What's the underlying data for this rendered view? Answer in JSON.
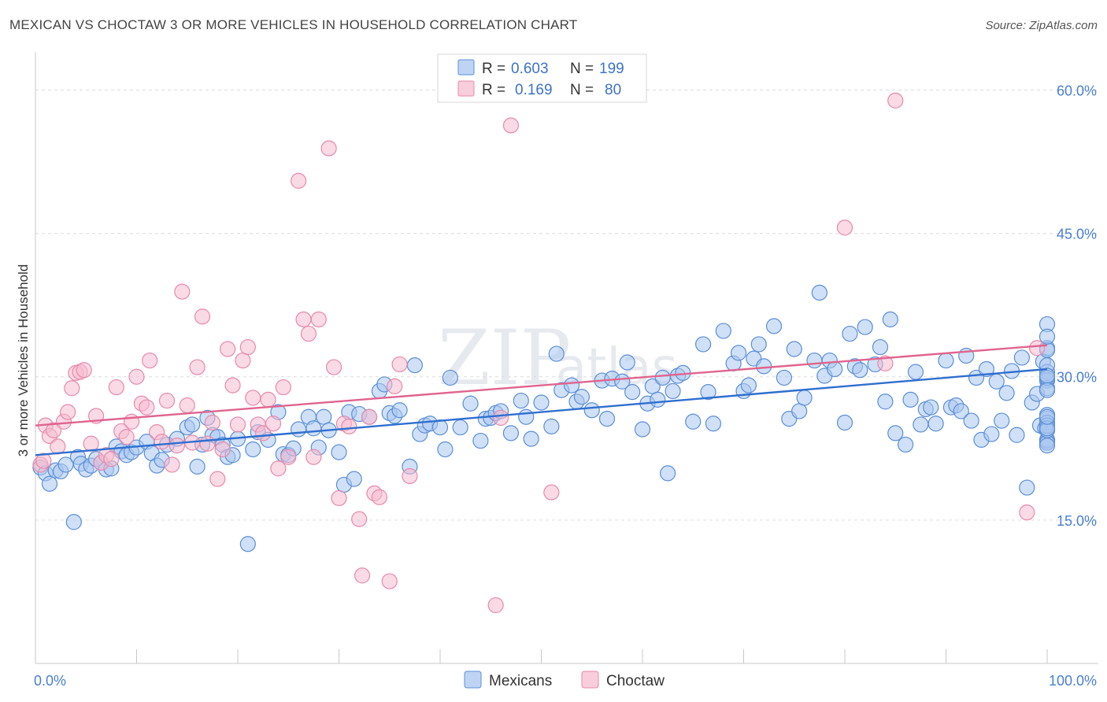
{
  "header": {
    "title": "MEXICAN VS CHOCTAW 3 OR MORE VEHICLES IN HOUSEHOLD CORRELATION CHART",
    "source": "Source: ZipAtlas.com"
  },
  "watermark": {
    "zip": "ZIP",
    "atlas": "atlas"
  },
  "colors": {
    "mexicans_fill": "#a9c6f0",
    "mexicans_stroke": "#5b8fd8",
    "mexicans_line": "#2f6fcf",
    "choctaw_fill": "#f5bcd0",
    "choctaw_stroke": "#e88aa8",
    "choctaw_line": "#e0648f",
    "tick_label": "#4a7fd0"
  },
  "stats_box": {
    "rows": [
      {
        "r_label": "R =",
        "r_value": "0.603",
        "n_label": "N =",
        "n_value": "199"
      },
      {
        "r_label": "R =",
        "r_value": "0.169",
        "n_label": "N =",
        "n_value": "80"
      }
    ]
  },
  "chart_data": {
    "type": "scatter",
    "title": "MEXICAN VS CHOCTAW 3 OR MORE VEHICLES IN HOUSEHOLD CORRELATION CHART",
    "xlabel": "",
    "ylabel": "3 or more Vehicles in Household",
    "xlim": [
      0,
      100
    ],
    "ylim": [
      0,
      63
    ],
    "x_tick_labels": [
      "0.0%",
      "100.0%"
    ],
    "y_ticks": [
      15,
      30,
      45,
      60
    ],
    "y_tick_labels": [
      "15.0%",
      "30.0%",
      "45.0%",
      "60.0%"
    ],
    "grid": true,
    "legend_position": "bottom-center",
    "series": [
      {
        "name": "Mexicans",
        "R": 0.603,
        "N": 199,
        "trend": {
          "x": [
            0,
            100
          ],
          "y": [
            21.8,
            30.8
          ]
        },
        "points": [
          [
            0.5,
            20.5
          ],
          [
            1,
            19.9
          ],
          [
            1.4,
            18.8
          ],
          [
            2,
            20.2
          ],
          [
            2.5,
            20.1
          ],
          [
            3,
            20.8
          ],
          [
            3.8,
            14.8
          ],
          [
            4.2,
            21.6
          ],
          [
            4.5,
            20.9
          ],
          [
            5,
            20.3
          ],
          [
            5.5,
            20.7
          ],
          [
            6,
            21.4
          ],
          [
            6.5,
            21
          ],
          [
            7,
            20.3
          ],
          [
            7.5,
            20.4
          ],
          [
            8,
            22.7
          ],
          [
            8.5,
            22.2
          ],
          [
            9,
            21.8
          ],
          [
            9.5,
            22.1
          ],
          [
            10,
            22.6
          ],
          [
            11,
            23.2
          ],
          [
            11.5,
            22
          ],
          [
            12,
            20.7
          ],
          [
            12.5,
            21.3
          ],
          [
            13,
            22.9
          ],
          [
            14,
            23.5
          ],
          [
            15,
            24.7
          ],
          [
            15.5,
            25
          ],
          [
            16,
            20.6
          ],
          [
            16.5,
            22.9
          ],
          [
            17,
            25.7
          ],
          [
            17.5,
            23.9
          ],
          [
            18,
            23.7
          ],
          [
            18.5,
            22.9
          ],
          [
            19,
            21.6
          ],
          [
            19.5,
            21.8
          ],
          [
            20,
            23.5
          ],
          [
            21,
            12.5
          ],
          [
            21.5,
            22.4
          ],
          [
            22,
            24.2
          ],
          [
            23,
            23.4
          ],
          [
            24,
            26.3
          ],
          [
            24.5,
            21.9
          ],
          [
            25,
            21.8
          ],
          [
            25.5,
            22.5
          ],
          [
            26,
            24.5
          ],
          [
            27,
            25.8
          ],
          [
            27.5,
            24.6
          ],
          [
            28,
            22.6
          ],
          [
            28.5,
            25.8
          ],
          [
            29,
            24.4
          ],
          [
            30,
            22.1
          ],
          [
            30.5,
            18.7
          ],
          [
            31,
            26.3
          ],
          [
            31.5,
            19.3
          ],
          [
            32,
            26.1
          ],
          [
            33,
            25.8
          ],
          [
            34,
            28.5
          ],
          [
            34.5,
            29.2
          ],
          [
            35,
            26.2
          ],
          [
            35.5,
            25.9
          ],
          [
            36,
            26.5
          ],
          [
            37,
            20.6
          ],
          [
            37.5,
            31.2
          ],
          [
            38,
            24
          ],
          [
            38.5,
            24.9
          ],
          [
            39,
            25.1
          ],
          [
            40,
            24.7
          ],
          [
            40.5,
            22.4
          ],
          [
            41,
            29.9
          ],
          [
            42,
            24.7
          ],
          [
            43,
            27.2
          ],
          [
            44,
            23.3
          ],
          [
            44.5,
            25.6
          ],
          [
            45,
            25.7
          ],
          [
            45.5,
            26.2
          ],
          [
            46,
            26.4
          ],
          [
            47,
            24.1
          ],
          [
            48,
            27.5
          ],
          [
            48.5,
            25.8
          ],
          [
            49,
            23.5
          ],
          [
            50,
            27.3
          ],
          [
            51,
            24.8
          ],
          [
            51.5,
            32.4
          ],
          [
            52,
            28.6
          ],
          [
            53,
            29.1
          ],
          [
            53.5,
            27.4
          ],
          [
            54,
            27.9
          ],
          [
            55,
            26.5
          ],
          [
            56,
            29.6
          ],
          [
            56.5,
            25.6
          ],
          [
            57,
            29.8
          ],
          [
            58,
            29.5
          ],
          [
            58.5,
            31.5
          ],
          [
            59,
            28.4
          ],
          [
            60,
            24.5
          ],
          [
            60.5,
            27.2
          ],
          [
            61,
            29
          ],
          [
            61.5,
            27.6
          ],
          [
            62,
            29.9
          ],
          [
            62.5,
            19.9
          ],
          [
            63,
            28.5
          ],
          [
            63.5,
            30.1
          ],
          [
            64,
            30.4
          ],
          [
            65,
            25.3
          ],
          [
            66,
            33.4
          ],
          [
            66.5,
            28.4
          ],
          [
            67,
            25.1
          ],
          [
            68,
            34.8
          ],
          [
            69,
            31.4
          ],
          [
            69.5,
            32.5
          ],
          [
            70,
            28.5
          ],
          [
            70.5,
            29.1
          ],
          [
            71,
            31.9
          ],
          [
            71.5,
            33.4
          ],
          [
            72,
            31.1
          ],
          [
            73,
            35.3
          ],
          [
            74,
            29.9
          ],
          [
            74.5,
            25.6
          ],
          [
            75,
            32.9
          ],
          [
            75.5,
            26.4
          ],
          [
            76,
            27.8
          ],
          [
            77,
            31.7
          ],
          [
            77.5,
            38.8
          ],
          [
            78,
            30.1
          ],
          [
            78.5,
            31.7
          ],
          [
            79,
            30.8
          ],
          [
            80,
            25.2
          ],
          [
            80.5,
            34.5
          ],
          [
            81,
            31.1
          ],
          [
            81.5,
            30.7
          ],
          [
            82,
            35.2
          ],
          [
            83,
            31.3
          ],
          [
            83.5,
            33.1
          ],
          [
            84,
            27.4
          ],
          [
            84.5,
            36
          ],
          [
            85,
            24.1
          ],
          [
            86,
            22.9
          ],
          [
            86.5,
            27.6
          ],
          [
            87,
            30.5
          ],
          [
            87.5,
            25
          ],
          [
            88,
            26.6
          ],
          [
            88.5,
            26.8
          ],
          [
            89,
            25.1
          ],
          [
            90,
            31.7
          ],
          [
            90.5,
            26.8
          ],
          [
            91,
            27
          ],
          [
            91.5,
            26.4
          ],
          [
            92,
            32.2
          ],
          [
            92.5,
            25.4
          ],
          [
            93,
            29.9
          ],
          [
            93.5,
            23.4
          ],
          [
            94,
            30.8
          ],
          [
            94.5,
            24
          ],
          [
            95,
            29.5
          ],
          [
            95.5,
            25.4
          ],
          [
            96,
            28.3
          ],
          [
            96.5,
            30.6
          ],
          [
            97,
            23.9
          ],
          [
            97.5,
            32
          ],
          [
            98,
            18.4
          ],
          [
            98.5,
            27.3
          ],
          [
            99,
            28.2
          ],
          [
            99.3,
            24.9
          ],
          [
            99.6,
            31.6
          ],
          [
            99.8,
            24.6
          ],
          [
            100,
            23.4
          ],
          [
            100.2,
            25.6
          ],
          [
            100.4,
            26
          ],
          [
            100.6,
            25.2
          ],
          [
            100.8,
            29.8
          ],
          [
            101,
            23.3
          ],
          [
            101.2,
            30.5
          ],
          [
            101.4,
            29.6
          ],
          [
            101.6,
            31.2
          ],
          [
            101.8,
            28.8
          ],
          [
            102,
            29.9
          ],
          [
            102.2,
            33
          ],
          [
            102.4,
            24.9
          ],
          [
            102.6,
            32.8
          ],
          [
            102.8,
            30.1
          ],
          [
            103,
            23.1
          ],
          [
            103.2,
            35.5
          ],
          [
            103.4,
            24.4
          ],
          [
            103.6,
            28.6
          ],
          [
            103.8,
            24.6
          ],
          [
            104,
            25.8
          ],
          [
            104.2,
            34.2
          ],
          [
            104.4,
            22.8
          ]
        ]
      },
      {
        "name": "Choctaw",
        "R": 0.169,
        "N": 80,
        "trend": {
          "x": [
            0,
            100
          ],
          "y": [
            24.9,
            33.3
          ]
        },
        "points": [
          [
            0.5,
            20.8
          ],
          [
            0.8,
            21.2
          ],
          [
            1,
            24.9
          ],
          [
            1.4,
            23.8
          ],
          [
            1.8,
            24.4
          ],
          [
            2.2,
            22.7
          ],
          [
            2.8,
            25.3
          ],
          [
            3.2,
            26.3
          ],
          [
            3.6,
            28.8
          ],
          [
            4,
            30.4
          ],
          [
            4.4,
            30.5
          ],
          [
            4.8,
            30.7
          ],
          [
            5.5,
            23
          ],
          [
            6,
            25.9
          ],
          [
            6.5,
            21
          ],
          [
            7,
            21.8
          ],
          [
            7.5,
            21.4
          ],
          [
            8,
            28.9
          ],
          [
            8.5,
            24.3
          ],
          [
            9,
            23.7
          ],
          [
            9.5,
            25.3
          ],
          [
            10,
            30
          ],
          [
            10.5,
            27.2
          ],
          [
            11,
            26.8
          ],
          [
            11.3,
            31.7
          ],
          [
            12,
            24.2
          ],
          [
            12.5,
            23.2
          ],
          [
            13,
            27.5
          ],
          [
            13.5,
            20.8
          ],
          [
            14,
            22.8
          ],
          [
            14.5,
            38.9
          ],
          [
            15,
            27
          ],
          [
            15.5,
            23.1
          ],
          [
            16,
            31
          ],
          [
            16.5,
            36.3
          ],
          [
            17,
            23
          ],
          [
            17.5,
            25.2
          ],
          [
            18,
            19.3
          ],
          [
            18.5,
            22.4
          ],
          [
            19,
            32.9
          ],
          [
            19.5,
            29.1
          ],
          [
            20,
            25
          ],
          [
            20.5,
            31.7
          ],
          [
            21,
            33.1
          ],
          [
            21.5,
            27.8
          ],
          [
            22,
            25
          ],
          [
            22.5,
            24.1
          ],
          [
            23,
            27.6
          ],
          [
            23.5,
            25.1
          ],
          [
            24,
            20.4
          ],
          [
            24.5,
            28.9
          ],
          [
            25,
            21.6
          ],
          [
            26,
            50.5
          ],
          [
            26.5,
            36
          ],
          [
            27,
            34.5
          ],
          [
            27.5,
            21.6
          ],
          [
            28,
            36
          ],
          [
            29,
            53.9
          ],
          [
            29.5,
            31
          ],
          [
            30,
            17.3
          ],
          [
            30.5,
            25.1
          ],
          [
            31,
            24.8
          ],
          [
            32,
            15.1
          ],
          [
            32.3,
            9.2
          ],
          [
            33,
            25.8
          ],
          [
            33.5,
            17.8
          ],
          [
            34,
            17.4
          ],
          [
            35,
            8.6
          ],
          [
            35.5,
            29
          ],
          [
            36,
            31.3
          ],
          [
            37,
            19.6
          ],
          [
            45.5,
            6.1
          ],
          [
            46,
            25.7
          ],
          [
            47,
            56.3
          ],
          [
            51,
            17.9
          ],
          [
            80,
            45.6
          ],
          [
            84,
            31.4
          ],
          [
            85,
            58.9
          ],
          [
            98,
            15.8
          ],
          [
            99,
            33
          ]
        ]
      }
    ]
  },
  "legend": {
    "items": [
      {
        "label": "Mexicans"
      },
      {
        "label": "Choctaw"
      }
    ]
  }
}
